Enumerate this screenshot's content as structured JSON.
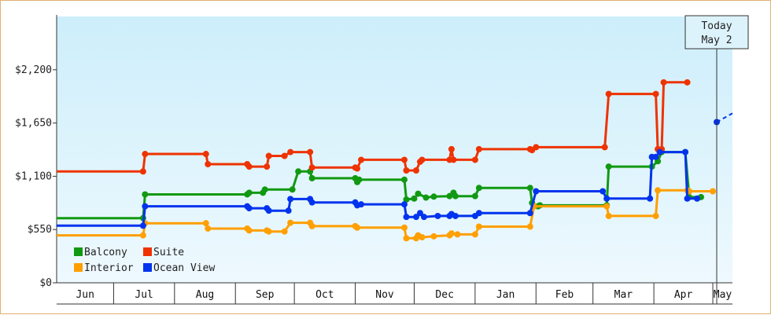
{
  "chart_data": {
    "type": "line",
    "title": "",
    "xlabel": "",
    "ylabel": "",
    "ylim": [
      0,
      2750
    ],
    "yticks": [
      0,
      550,
      1100,
      1650,
      2200
    ],
    "ytick_labels": [
      "$0",
      "$550",
      "$1,100",
      "$1,650",
      "$2,200"
    ],
    "x_domain": [
      "2019-06-01",
      "2020-05-10"
    ],
    "months": [
      {
        "label": "Jun",
        "start": "2019-06-01",
        "end": "2019-06-30"
      },
      {
        "label": "Jul",
        "start": "2019-06-30",
        "end": "2019-07-31"
      },
      {
        "label": "Aug",
        "start": "2019-07-31",
        "end": "2019-08-31"
      },
      {
        "label": "Sep",
        "start": "2019-08-31",
        "end": "2019-09-30"
      },
      {
        "label": "Oct",
        "start": "2019-09-30",
        "end": "2019-10-31"
      },
      {
        "label": "Nov",
        "start": "2019-10-31",
        "end": "2019-11-30"
      },
      {
        "label": "Dec",
        "start": "2019-11-30",
        "end": "2019-12-31"
      },
      {
        "label": "Jan",
        "start": "2019-12-31",
        "end": "2020-01-31"
      },
      {
        "label": "Feb",
        "start": "2020-01-31",
        "end": "2020-02-29"
      },
      {
        "label": "Mar",
        "start": "2020-02-29",
        "end": "2020-03-31"
      },
      {
        "label": "Apr",
        "start": "2020-03-31",
        "end": "2020-04-30"
      },
      {
        "label": "May",
        "start": "2020-04-30",
        "end": "2020-05-10"
      }
    ],
    "today": {
      "line1": "Today",
      "line2": "May 2",
      "date": "2020-05-02"
    },
    "legend_position": "bottom-left",
    "series": [
      {
        "name": "Balcony",
        "color": "#119911",
        "points": [
          [
            "2019-06-01",
            668
          ],
          [
            "2019-07-15",
            668
          ],
          [
            "2019-07-16",
            913
          ],
          [
            "2019-08-18",
            913
          ],
          [
            "2019-09-06",
            913
          ],
          [
            "2019-09-07",
            930
          ],
          [
            "2019-09-14",
            930
          ],
          [
            "2019-09-15",
            963
          ],
          [
            "2019-09-29",
            963
          ],
          [
            "2019-10-02",
            1150
          ],
          [
            "2019-10-08",
            1150
          ],
          [
            "2019-10-09",
            1080
          ],
          [
            "2019-10-31",
            1080
          ],
          [
            "2019-11-01",
            1040
          ],
          [
            "2019-11-02",
            1065
          ],
          [
            "2019-11-25",
            1065
          ],
          [
            "2019-11-26",
            860
          ],
          [
            "2019-11-30",
            870
          ],
          [
            "2019-12-02",
            920
          ],
          [
            "2019-12-06",
            880
          ],
          [
            "2019-12-10",
            890
          ],
          [
            "2019-12-18",
            895
          ],
          [
            "2019-12-20",
            930
          ],
          [
            "2019-12-21",
            895
          ],
          [
            "2019-12-31",
            895
          ],
          [
            "2020-01-02",
            980
          ],
          [
            "2020-01-28",
            980
          ],
          [
            "2020-01-29",
            825
          ],
          [
            "2020-02-01",
            790
          ],
          [
            "2020-02-02",
            800
          ],
          [
            "2020-03-07",
            800
          ],
          [
            "2020-03-08",
            1200
          ],
          [
            "2020-03-30",
            1200
          ],
          [
            "2020-04-02",
            1255
          ],
          [
            "2020-04-04",
            1350
          ],
          [
            "2020-04-16",
            1350
          ],
          [
            "2020-04-18",
            885
          ],
          [
            "2020-04-24",
            885
          ]
        ]
      },
      {
        "name": "Suite",
        "color": "#ee3300",
        "points": [
          [
            "2019-06-01",
            1150
          ],
          [
            "2019-07-15",
            1150
          ],
          [
            "2019-07-16",
            1330
          ],
          [
            "2019-08-16",
            1330
          ],
          [
            "2019-08-17",
            1225
          ],
          [
            "2019-09-06",
            1225
          ],
          [
            "2019-09-07",
            1200
          ],
          [
            "2019-09-16",
            1200
          ],
          [
            "2019-09-17",
            1310
          ],
          [
            "2019-09-25",
            1310
          ],
          [
            "2019-09-28",
            1350
          ],
          [
            "2019-10-08",
            1350
          ],
          [
            "2019-10-09",
            1190
          ],
          [
            "2019-10-31",
            1190
          ],
          [
            "2019-11-01",
            1180
          ],
          [
            "2019-11-03",
            1270
          ],
          [
            "2019-11-25",
            1270
          ],
          [
            "2019-11-26",
            1160
          ],
          [
            "2019-12-01",
            1160
          ],
          [
            "2019-12-03",
            1250
          ],
          [
            "2019-12-04",
            1270
          ],
          [
            "2019-12-18",
            1270
          ],
          [
            "2019-12-19",
            1380
          ],
          [
            "2019-12-20",
            1270
          ],
          [
            "2019-12-31",
            1270
          ],
          [
            "2020-01-02",
            1380
          ],
          [
            "2020-01-28",
            1380
          ],
          [
            "2020-01-29",
            1370
          ],
          [
            "2020-01-31",
            1400
          ],
          [
            "2020-03-06",
            1400
          ],
          [
            "2020-03-08",
            1950
          ],
          [
            "2020-04-01",
            1950
          ],
          [
            "2020-04-02",
            1380
          ],
          [
            "2020-04-03",
            1350
          ],
          [
            "2020-04-04",
            1380
          ],
          [
            "2020-04-05",
            2070
          ],
          [
            "2020-04-17",
            2070
          ]
        ]
      },
      {
        "name": "Interior",
        "color": "#ff9f00",
        "points": [
          [
            "2019-06-01",
            490
          ],
          [
            "2019-07-15",
            490
          ],
          [
            "2019-07-16",
            615
          ],
          [
            "2019-08-16",
            615
          ],
          [
            "2019-08-17",
            560
          ],
          [
            "2019-09-06",
            560
          ],
          [
            "2019-09-07",
            540
          ],
          [
            "2019-09-16",
            540
          ],
          [
            "2019-09-17",
            530
          ],
          [
            "2019-09-25",
            530
          ],
          [
            "2019-09-28",
            620
          ],
          [
            "2019-10-08",
            620
          ],
          [
            "2019-10-09",
            585
          ],
          [
            "2019-10-31",
            585
          ],
          [
            "2019-11-01",
            570
          ],
          [
            "2019-11-03",
            570
          ],
          [
            "2019-11-25",
            570
          ],
          [
            "2019-11-26",
            460
          ],
          [
            "2019-12-01",
            460
          ],
          [
            "2019-12-02",
            490
          ],
          [
            "2019-12-04",
            470
          ],
          [
            "2019-12-10",
            480
          ],
          [
            "2019-12-18",
            490
          ],
          [
            "2019-12-19",
            510
          ],
          [
            "2019-12-22",
            500
          ],
          [
            "2019-12-31",
            500
          ],
          [
            "2020-01-02",
            580
          ],
          [
            "2020-01-28",
            580
          ],
          [
            "2020-01-30",
            790
          ],
          [
            "2020-03-07",
            790
          ],
          [
            "2020-03-08",
            690
          ],
          [
            "2020-04-01",
            690
          ],
          [
            "2020-04-02",
            955
          ],
          [
            "2020-04-04",
            955
          ],
          [
            "2020-04-05",
            955
          ],
          [
            "2020-04-17",
            955
          ],
          [
            "2020-04-18",
            945
          ],
          [
            "2020-04-30",
            945
          ]
        ]
      },
      {
        "name": "Ocean View",
        "color": "#0033ee",
        "points": [
          [
            "2019-06-01",
            590
          ],
          [
            "2019-07-15",
            590
          ],
          [
            "2019-07-16",
            790
          ],
          [
            "2019-08-16",
            790
          ],
          [
            "2019-09-06",
            790
          ],
          [
            "2019-09-07",
            770
          ],
          [
            "2019-09-16",
            770
          ],
          [
            "2019-09-17",
            745
          ],
          [
            "2019-09-27",
            745
          ],
          [
            "2019-09-28",
            865
          ],
          [
            "2019-10-08",
            865
          ],
          [
            "2019-10-09",
            830
          ],
          [
            "2019-10-31",
            830
          ],
          [
            "2019-11-01",
            800
          ],
          [
            "2019-11-03",
            810
          ],
          [
            "2019-11-25",
            810
          ],
          [
            "2019-11-26",
            680
          ],
          [
            "2019-12-01",
            680
          ],
          [
            "2019-12-03",
            720
          ],
          [
            "2019-12-05",
            680
          ],
          [
            "2019-12-12",
            690
          ],
          [
            "2019-12-18",
            690
          ],
          [
            "2019-12-19",
            710
          ],
          [
            "2019-12-21",
            690
          ],
          [
            "2019-12-31",
            690
          ],
          [
            "2020-01-02",
            720
          ],
          [
            "2020-01-28",
            720
          ],
          [
            "2020-01-31",
            945
          ],
          [
            "2020-03-05",
            945
          ],
          [
            "2020-03-07",
            870
          ],
          [
            "2020-03-29",
            870
          ],
          [
            "2020-03-30",
            1300
          ],
          [
            "2020-04-01",
            1300
          ],
          [
            "2020-04-03",
            1350
          ],
          [
            "2020-04-04",
            1350
          ],
          [
            "2020-04-16",
            1350
          ],
          [
            "2020-04-17",
            870
          ],
          [
            "2020-04-22",
            870
          ]
        ],
        "forecast": [
          [
            "2020-05-02",
            1660
          ],
          [
            "2020-05-10",
            1750
          ]
        ]
      }
    ],
    "legend_order": [
      "Balcony",
      "Suite",
      "Interior",
      "Ocean View"
    ]
  }
}
